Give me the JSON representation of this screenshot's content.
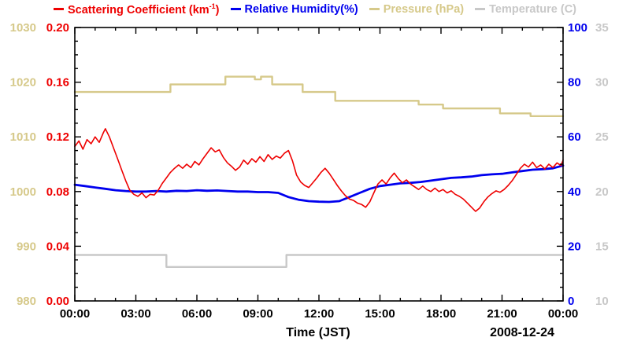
{
  "legend": {
    "items": [
      {
        "pre": "Scattering Coefficient (km",
        "sup": "-1",
        "post": ")",
        "color": "#ee0000"
      },
      {
        "label": "Relative Humidity(%)",
        "color": "#0000ee"
      },
      {
        "label": "Pressure (hPa)",
        "color": "#d6c98a"
      },
      {
        "label": "Temperature (C)",
        "color": "#c8c8c8"
      }
    ]
  },
  "chart_data": {
    "type": "line",
    "title": "",
    "xlabel": "Time (JST)",
    "date_label": "2008-12-24",
    "x_axis": {
      "min": 0,
      "max": 24,
      "minor_step": 1,
      "majors": [
        0,
        3,
        6,
        9,
        12,
        15,
        18,
        21,
        24
      ],
      "labels": [
        "00:00",
        "03:00",
        "06:00",
        "09:00",
        "12:00",
        "15:00",
        "18:00",
        "21:00",
        "00:00"
      ]
    },
    "y_axes": {
      "scattering": {
        "label": "Scattering Coefficient (km-1)",
        "color": "#ee0000",
        "min": 0,
        "max": 0.2,
        "minor_step": 0.01,
        "majors": [
          0,
          0.04,
          0.08,
          0.12,
          0.16,
          0.2
        ],
        "labels": [
          "0.00",
          "0.04",
          "0.08",
          "0.12",
          "0.16",
          "0.20"
        ],
        "side": "left-box"
      },
      "humidity": {
        "label": "Relative Humidity(%)",
        "color": "#0000ee",
        "min": 0,
        "max": 100,
        "minor_step": 5,
        "majors": [
          0,
          20,
          40,
          60,
          80,
          100
        ],
        "labels": [
          "0",
          "20",
          "40",
          "60",
          "80",
          "100"
        ],
        "side": "right-box"
      },
      "pressure": {
        "label": "Pressure (hPa)",
        "color": "#d6c98a",
        "min": 980,
        "max": 1030,
        "majors": [
          980,
          990,
          1000,
          1010,
          1020,
          1030
        ],
        "labels": [
          "980",
          "990",
          "1000",
          "1010",
          "1020",
          "1030"
        ],
        "side": "far-left"
      },
      "temperature": {
        "label": "Temperature (C)",
        "color": "#c8c8c8",
        "min": 10,
        "max": 35,
        "majors": [
          10,
          15,
          20,
          25,
          30,
          35
        ],
        "labels": [
          "10",
          "15",
          "20",
          "25",
          "30",
          "35"
        ],
        "side": "far-right"
      }
    },
    "series": [
      {
        "name": "pressure",
        "axis": "pressure",
        "color": "#d6c98a",
        "width": 2.4,
        "points": [
          [
            0,
            1018.2
          ],
          [
            4.7,
            1018.2
          ],
          [
            4.7,
            1019.6
          ],
          [
            7.4,
            1019.6
          ],
          [
            7.4,
            1021.0
          ],
          [
            8.85,
            1021.0
          ],
          [
            8.85,
            1020.5
          ],
          [
            9.15,
            1020.5
          ],
          [
            9.15,
            1021.0
          ],
          [
            9.7,
            1021.0
          ],
          [
            9.7,
            1019.6
          ],
          [
            11.2,
            1019.6
          ],
          [
            11.2,
            1018.2
          ],
          [
            12.8,
            1018.2
          ],
          [
            12.8,
            1016.6
          ],
          [
            16.9,
            1016.6
          ],
          [
            16.9,
            1015.9
          ],
          [
            18.1,
            1015.9
          ],
          [
            18.1,
            1015.2
          ],
          [
            20.9,
            1015.2
          ],
          [
            20.9,
            1014.3
          ],
          [
            22.4,
            1014.3
          ],
          [
            22.4,
            1013.8
          ],
          [
            24,
            1013.8
          ]
        ]
      },
      {
        "name": "temperature",
        "axis": "temperature",
        "color": "#c8c8c8",
        "width": 2.4,
        "points": [
          [
            0,
            14.2
          ],
          [
            4.5,
            14.2
          ],
          [
            4.5,
            13.1
          ],
          [
            10.4,
            13.1
          ],
          [
            10.4,
            14.2
          ],
          [
            24,
            14.2
          ]
        ]
      },
      {
        "name": "humidity",
        "axis": "humidity",
        "color": "#0000ee",
        "width": 2.8,
        "points": [
          [
            0,
            42.5
          ],
          [
            0.5,
            42.0
          ],
          [
            1,
            41.5
          ],
          [
            1.5,
            41.0
          ],
          [
            2,
            40.5
          ],
          [
            2.5,
            40.2
          ],
          [
            3,
            40.0
          ],
          [
            3.5,
            40.0
          ],
          [
            4,
            40.2
          ],
          [
            4.5,
            40.0
          ],
          [
            5,
            40.3
          ],
          [
            5.5,
            40.2
          ],
          [
            6,
            40.5
          ],
          [
            6.5,
            40.3
          ],
          [
            7,
            40.4
          ],
          [
            7.5,
            40.2
          ],
          [
            8,
            40.0
          ],
          [
            8.5,
            40.0
          ],
          [
            9,
            39.8
          ],
          [
            9.5,
            39.8
          ],
          [
            10,
            39.5
          ],
          [
            10.5,
            38.0
          ],
          [
            11,
            37.0
          ],
          [
            11.5,
            36.5
          ],
          [
            12,
            36.3
          ],
          [
            12.5,
            36.2
          ],
          [
            13,
            36.5
          ],
          [
            13.5,
            38.0
          ],
          [
            14,
            39.5
          ],
          [
            14.5,
            41.0
          ],
          [
            15,
            42.0
          ],
          [
            15.5,
            42.5
          ],
          [
            16,
            43.0
          ],
          [
            16.5,
            43.2
          ],
          [
            17,
            43.5
          ],
          [
            17.5,
            44.0
          ],
          [
            18,
            44.5
          ],
          [
            18.5,
            45.0
          ],
          [
            19,
            45.2
          ],
          [
            19.5,
            45.5
          ],
          [
            20,
            46.0
          ],
          [
            20.5,
            46.3
          ],
          [
            21,
            46.5
          ],
          [
            21.5,
            47.0
          ],
          [
            22,
            47.5
          ],
          [
            22.5,
            48.0
          ],
          [
            23,
            48.2
          ],
          [
            23.5,
            48.5
          ],
          [
            24,
            49.5
          ]
        ]
      },
      {
        "name": "scattering",
        "axis": "scattering",
        "color": "#ee0000",
        "width": 1.6,
        "points": [
          [
            0,
            0.113
          ],
          [
            0.2,
            0.117
          ],
          [
            0.4,
            0.111
          ],
          [
            0.6,
            0.118
          ],
          [
            0.8,
            0.115
          ],
          [
            1.0,
            0.12
          ],
          [
            1.2,
            0.116
          ],
          [
            1.4,
            0.123
          ],
          [
            1.5,
            0.126
          ],
          [
            1.7,
            0.12
          ],
          [
            1.9,
            0.112
          ],
          [
            2.1,
            0.104
          ],
          [
            2.3,
            0.096
          ],
          [
            2.5,
            0.088
          ],
          [
            2.7,
            0.081
          ],
          [
            2.9,
            0.078
          ],
          [
            3.1,
            0.0765
          ],
          [
            3.3,
            0.079
          ],
          [
            3.5,
            0.0755
          ],
          [
            3.7,
            0.078
          ],
          [
            3.9,
            0.0775
          ],
          [
            4.1,
            0.081
          ],
          [
            4.3,
            0.086
          ],
          [
            4.5,
            0.09
          ],
          [
            4.7,
            0.094
          ],
          [
            4.9,
            0.097
          ],
          [
            5.1,
            0.0995
          ],
          [
            5.3,
            0.097
          ],
          [
            5.5,
            0.1
          ],
          [
            5.7,
            0.0975
          ],
          [
            5.9,
            0.102
          ],
          [
            6.1,
            0.0995
          ],
          [
            6.3,
            0.104
          ],
          [
            6.5,
            0.108
          ],
          [
            6.7,
            0.112
          ],
          [
            6.9,
            0.109
          ],
          [
            7.1,
            0.1105
          ],
          [
            7.3,
            0.105
          ],
          [
            7.5,
            0.101
          ],
          [
            7.7,
            0.0985
          ],
          [
            7.9,
            0.0955
          ],
          [
            8.1,
            0.098
          ],
          [
            8.3,
            0.103
          ],
          [
            8.5,
            0.1
          ],
          [
            8.7,
            0.104
          ],
          [
            8.9,
            0.1015
          ],
          [
            9.1,
            0.1055
          ],
          [
            9.3,
            0.102
          ],
          [
            9.5,
            0.107
          ],
          [
            9.7,
            0.1035
          ],
          [
            9.9,
            0.106
          ],
          [
            10.1,
            0.1045
          ],
          [
            10.3,
            0.108
          ],
          [
            10.5,
            0.11
          ],
          [
            10.7,
            0.1025
          ],
          [
            10.9,
            0.092
          ],
          [
            11.1,
            0.087
          ],
          [
            11.3,
            0.0845
          ],
          [
            11.5,
            0.083
          ],
          [
            11.7,
            0.0865
          ],
          [
            11.9,
            0.09
          ],
          [
            12.1,
            0.094
          ],
          [
            12.3,
            0.097
          ],
          [
            12.5,
            0.0935
          ],
          [
            12.7,
            0.089
          ],
          [
            12.9,
            0.0845
          ],
          [
            13.1,
            0.0805
          ],
          [
            13.3,
            0.077
          ],
          [
            13.5,
            0.0745
          ],
          [
            13.7,
            0.0735
          ],
          [
            13.9,
            0.0715
          ],
          [
            14.1,
            0.0705
          ],
          [
            14.3,
            0.0685
          ],
          [
            14.5,
            0.0725
          ],
          [
            14.7,
            0.079
          ],
          [
            14.9,
            0.0855
          ],
          [
            15.1,
            0.0885
          ],
          [
            15.3,
            0.0855
          ],
          [
            15.5,
            0.09
          ],
          [
            15.7,
            0.0935
          ],
          [
            15.9,
            0.0895
          ],
          [
            16.1,
            0.0865
          ],
          [
            16.3,
            0.0885
          ],
          [
            16.5,
            0.0855
          ],
          [
            16.7,
            0.0835
          ],
          [
            16.9,
            0.0815
          ],
          [
            17.1,
            0.084
          ],
          [
            17.3,
            0.0815
          ],
          [
            17.5,
            0.08
          ],
          [
            17.7,
            0.0825
          ],
          [
            17.9,
            0.08
          ],
          [
            18.1,
            0.0815
          ],
          [
            18.3,
            0.079
          ],
          [
            18.5,
            0.0805
          ],
          [
            18.7,
            0.078
          ],
          [
            18.9,
            0.0765
          ],
          [
            19.1,
            0.0745
          ],
          [
            19.3,
            0.0715
          ],
          [
            19.5,
            0.0685
          ],
          [
            19.7,
            0.0655
          ],
          [
            19.9,
            0.068
          ],
          [
            20.1,
            0.0725
          ],
          [
            20.3,
            0.076
          ],
          [
            20.5,
            0.0785
          ],
          [
            20.7,
            0.0805
          ],
          [
            20.9,
            0.0795
          ],
          [
            21.1,
            0.0815
          ],
          [
            21.3,
            0.0845
          ],
          [
            21.5,
            0.088
          ],
          [
            21.7,
            0.0925
          ],
          [
            21.9,
            0.097
          ],
          [
            22.1,
            0.1
          ],
          [
            22.3,
            0.098
          ],
          [
            22.5,
            0.1015
          ],
          [
            22.7,
            0.0975
          ],
          [
            22.9,
            0.0995
          ],
          [
            23.1,
            0.0965
          ],
          [
            23.3,
            0.1
          ],
          [
            23.5,
            0.0975
          ],
          [
            23.7,
            0.101
          ],
          [
            23.9,
            0.099
          ],
          [
            24,
            0.103
          ]
        ]
      }
    ]
  }
}
